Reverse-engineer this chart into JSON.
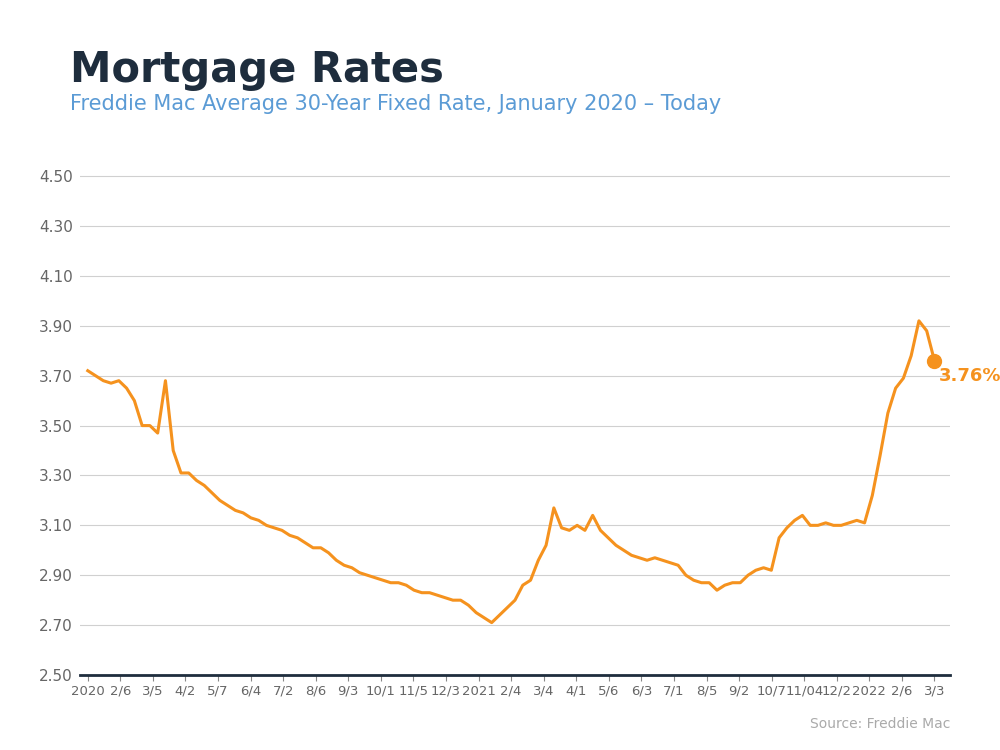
{
  "title": "Mortgage Rates",
  "subtitle": "Freddie Mac Average 30-Year Fixed Rate, January 2020 – Today",
  "source": "Source: Freddie Mac",
  "title_color": "#1e2d3d",
  "subtitle_color": "#5b9bd5",
  "line_color": "#f5921e",
  "dot_color": "#f5921e",
  "annotation_text": "3.76%",
  "annotation_color": "#f5921e",
  "grid_color": "#d0d0d0",
  "background_color": "#ffffff",
  "top_bar_color": "#5bb8d4",
  "ylim": [
    2.5,
    4.65
  ],
  "yticks": [
    2.5,
    2.7,
    2.9,
    3.1,
    3.3,
    3.5,
    3.7,
    3.9,
    4.1,
    4.3,
    4.5
  ],
  "xtick_labels": [
    "2020",
    "2/6",
    "3/5",
    "4/2",
    "5/7",
    "6/4",
    "7/2",
    "8/6",
    "9/3",
    "10/1",
    "11/5",
    "12/3",
    "2021",
    "2/4",
    "3/4",
    "4/1",
    "5/6",
    "6/3",
    "7/1",
    "8/5",
    "9/2",
    "10/7",
    "11/04",
    "12/2",
    "2022",
    "2/6",
    "3/3"
  ],
  "rates_approx": [
    3.72,
    3.7,
    3.68,
    3.67,
    3.68,
    3.65,
    3.6,
    3.5,
    3.5,
    3.47,
    3.68,
    3.4,
    3.31,
    3.31,
    3.28,
    3.26,
    3.23,
    3.2,
    3.18,
    3.16,
    3.15,
    3.13,
    3.12,
    3.1,
    3.09,
    3.08,
    3.06,
    3.05,
    3.03,
    3.01,
    3.01,
    2.99,
    2.96,
    2.94,
    2.93,
    2.91,
    2.9,
    2.89,
    2.88,
    2.87,
    2.87,
    2.86,
    2.84,
    2.83,
    2.83,
    2.82,
    2.81,
    2.8,
    2.8,
    2.78,
    2.75,
    2.73,
    2.71,
    2.74,
    2.77,
    2.8,
    2.86,
    2.88,
    2.96,
    3.02,
    3.17,
    3.09,
    3.08,
    3.1,
    3.08,
    3.14,
    3.08,
    3.05,
    3.02,
    3.0,
    2.98,
    2.97,
    2.96,
    2.97,
    2.96,
    2.95,
    2.94,
    2.9,
    2.88,
    2.87,
    2.87,
    2.84,
    2.86,
    2.87,
    2.87,
    2.9,
    2.92,
    2.93,
    2.92,
    3.05,
    3.09,
    3.12,
    3.14,
    3.1,
    3.1,
    3.11,
    3.1,
    3.1,
    3.11,
    3.12,
    3.11,
    3.22,
    3.38,
    3.55,
    3.65,
    3.69,
    3.78,
    3.92,
    3.88,
    3.76
  ],
  "last_value": 3.76,
  "source_color": "#aaaaaa"
}
